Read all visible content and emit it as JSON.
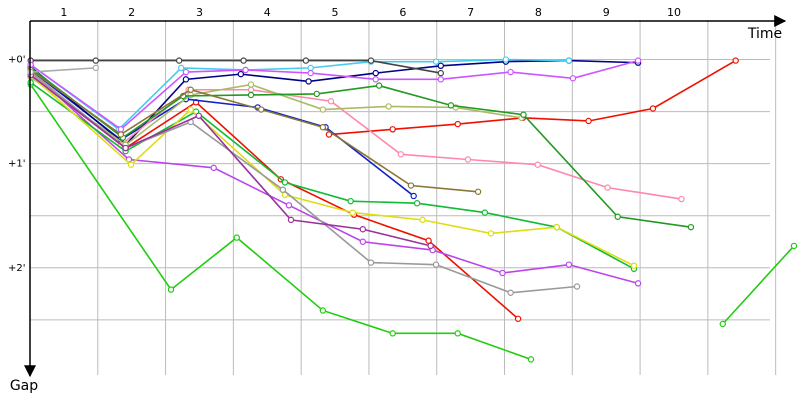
{
  "chart_data": {
    "type": "line",
    "x_label": "Time",
    "y_label": "Gap",
    "xlim": [
      0.5,
      11.8
    ],
    "ylim": [
      -0.38,
      3.03
    ],
    "xticks": [
      1,
      2,
      3,
      4,
      5,
      6,
      7,
      8,
      9,
      10
    ],
    "x_grid": [
      1.5,
      2.5,
      3.5,
      4.5,
      5.5,
      6.5,
      7.5,
      8.5,
      9.5,
      10.5,
      11.5
    ],
    "yticks": [
      {
        "value": 0,
        "label": "+0'"
      },
      {
        "value": 1,
        "label": "+1'"
      },
      {
        "value": 2,
        "label": "+2'"
      }
    ],
    "y_minor_grid": [
      0.5,
      1.5,
      2.5
    ],
    "grid": true,
    "series": [
      {
        "color": "#22cc11",
        "x": [
          0.51,
          2.58,
          3.55,
          4.82,
          5.85,
          6.81,
          7.89
        ],
        "values": [
          0.24,
          2.21,
          1.71,
          2.41,
          2.63,
          2.63,
          2.88
        ]
      },
      {
        "color": "#22cc11",
        "x": [
          10.72,
          11.77
        ],
        "values": [
          2.54,
          1.79
        ]
      },
      {
        "color": "#ee1100",
        "x": [
          0.51,
          1.91,
          2.95,
          4.2,
          5.28,
          6.38,
          7.7
        ],
        "values": [
          0.15,
          0.85,
          0.41,
          1.15,
          1.49,
          1.74,
          2.49
        ]
      },
      {
        "color": "#ee1100",
        "x": [
          4.91,
          5.85,
          6.81,
          7.77,
          8.74,
          9.69,
          10.91
        ],
        "values": [
          0.72,
          0.67,
          0.62,
          0.56,
          0.59,
          0.47,
          0.01
        ]
      },
      {
        "color": "#1122cc",
        "x": [
          0.51,
          1.84,
          2.8,
          3.86,
          4.86,
          6.16
        ],
        "values": [
          0.1,
          0.77,
          0.38,
          0.46,
          0.65,
          1.31
        ]
      },
      {
        "color": "#000088",
        "x": [
          0.51,
          1.91,
          2.8,
          3.61,
          4.61,
          5.6,
          6.56,
          7.52,
          8.45,
          9.47
        ],
        "values": [
          0.07,
          0.82,
          0.19,
          0.14,
          0.21,
          0.13,
          0.06,
          0.02,
          0.01,
          0.03
        ]
      },
      {
        "color": "#44ccee",
        "x": [
          0.51,
          1.81,
          2.73,
          3.68,
          4.64,
          5.53,
          6.49,
          7.52,
          8.45
        ],
        "values": [
          0.05,
          0.67,
          0.08,
          0.1,
          0.08,
          0.02,
          0.02,
          0,
          0.01
        ]
      },
      {
        "color": "#bb44ee",
        "x": [
          0.51,
          1.96,
          3.21,
          4.32,
          5.41,
          6.44,
          7.47,
          8.45,
          9.47
        ],
        "values": [
          0.12,
          0.96,
          1.04,
          1.4,
          1.75,
          1.83,
          2.05,
          1.97,
          2.15
        ]
      },
      {
        "color": "#ff88aa",
        "x": [
          0.51,
          1.84,
          2.84,
          3.76,
          4.94,
          5.97,
          6.96,
          7.99,
          9.02,
          10.11
        ],
        "values": [
          0.13,
          0.82,
          0.29,
          0.29,
          0.4,
          0.91,
          0.96,
          1.01,
          1.23,
          1.34
        ]
      },
      {
        "color": "#aabb66",
        "x": [
          0.51,
          1.91,
          2.87,
          3.76,
          4.82,
          5.79,
          6.78,
          7.75
        ],
        "values": [
          0.17,
          0.82,
          0.34,
          0.24,
          0.48,
          0.45,
          0.46,
          0.56
        ]
      },
      {
        "color": "#229922",
        "x": [
          0.51,
          1.87,
          2.76,
          3.76,
          4.73,
          5.65,
          6.71,
          7.78,
          9.17,
          10.25
        ],
        "values": [
          0.08,
          0.75,
          0.35,
          0.34,
          0.33,
          0.25,
          0.44,
          0.53,
          1.51,
          1.61
        ]
      },
      {
        "color": "#11bb33",
        "x": [
          0.51,
          1.91,
          2.95,
          4.26,
          5.23,
          6.21,
          7.21,
          8.27,
          9.41
        ],
        "values": [
          0.22,
          0.88,
          0.5,
          1.18,
          1.36,
          1.38,
          1.47,
          1.61,
          2.01
        ]
      },
      {
        "color": "#dddd11",
        "x": [
          0.51,
          1.99,
          2.87,
          4.26,
          5.26,
          6.29,
          7.3,
          8.27,
          9.41
        ],
        "values": [
          0.15,
          1.01,
          0.48,
          1.3,
          1.47,
          1.54,
          1.67,
          1.61,
          1.98
        ]
      },
      {
        "color": "#999999",
        "x": [
          0.51,
          1.91,
          2.87,
          4.23,
          5.53,
          6.49,
          7.59,
          8.57
        ],
        "values": [
          0.12,
          0.85,
          0.6,
          1.25,
          1.95,
          1.97,
          2.24,
          2.18
        ]
      },
      {
        "color": "#444444",
        "x": [
          0.51,
          1.47,
          2.7,
          3.65,
          4.57,
          5.53,
          6.56
        ],
        "values": [
          0.01,
          0.01,
          0.01,
          0.01,
          0.01,
          0.01,
          0.13
        ]
      },
      {
        "color": "#cc55ff",
        "x": [
          0.51,
          1.84,
          2.8,
          3.68,
          4.64,
          5.6,
          6.56,
          7.59,
          8.51,
          9.47
        ],
        "values": [
          0.05,
          0.67,
          0.12,
          0.1,
          0.13,
          0.19,
          0.19,
          0.12,
          0.18,
          0.01
        ]
      },
      {
        "color": "#993399",
        "x": [
          0.51,
          1.91,
          2.99,
          4.35,
          5.41,
          6.41
        ],
        "values": [
          0.15,
          0.85,
          0.54,
          1.54,
          1.63,
          1.79
        ]
      },
      {
        "color": "#887733",
        "x": [
          0.51,
          1.84,
          2.87,
          3.91,
          4.82,
          6.12,
          7.11
        ],
        "values": [
          0.1,
          0.72,
          0.29,
          0.48,
          0.65,
          1.21,
          1.27
        ]
      },
      {
        "color": "#aaaaaa",
        "x": [
          0.51,
          1.47
        ],
        "values": [
          0.12,
          0.08
        ]
      }
    ]
  }
}
